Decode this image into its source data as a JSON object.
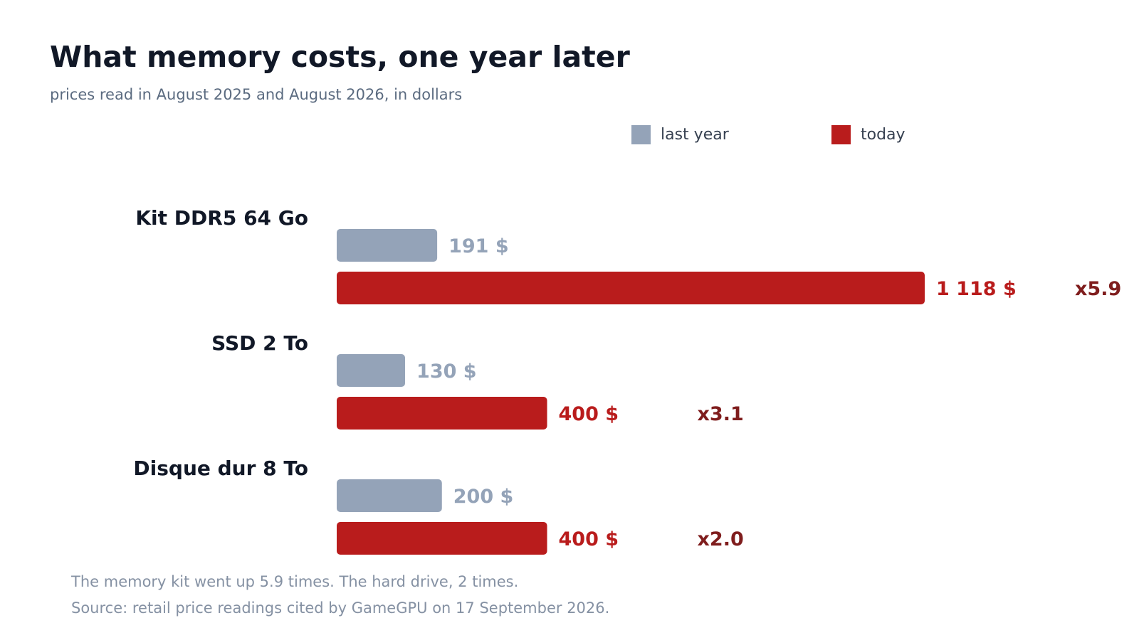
{
  "title": "What memory costs, one year later",
  "subtitle": "prices read in August 2025 and August 2026, in dollars",
  "legend": [
    {
      "label": "last year",
      "color": "#94a3b8"
    },
    {
      "label": "today",
      "color": "#b91c1c"
    }
  ],
  "chart_data": {
    "type": "bar",
    "orientation": "horizontal",
    "categories": [
      "Kit DDR5 64 Go",
      "SSD 2 To",
      "Disque dur 8 To"
    ],
    "series": [
      {
        "name": "last year",
        "values": [
          191,
          130,
          200
        ],
        "labels": [
          "191 $",
          "130 $",
          "200 $"
        ],
        "color": "#94a3b8"
      },
      {
        "name": "today",
        "values": [
          1118,
          400,
          400
        ],
        "labels": [
          "1 118 $",
          "400 $",
          "400 $"
        ],
        "color": "#b91c1c"
      }
    ],
    "ratios": [
      "x5.9",
      "x3.1",
      "x2.0"
    ],
    "xlim": [
      0,
      1118
    ],
    "grid": false,
    "legend_position": "top-right"
  },
  "footnotes": [
    "The memory kit went up 5.9 times. The hard drive, 2 times.",
    "Source: retail price readings cited by GameGPU on 17 September 2026."
  ],
  "colors": {
    "last_year_bar": "#94a3b8",
    "today_bar": "#b91c1c",
    "today_label": "#b91c1c",
    "ratio_label": "#7f1d1d",
    "category_label": "#111827"
  }
}
